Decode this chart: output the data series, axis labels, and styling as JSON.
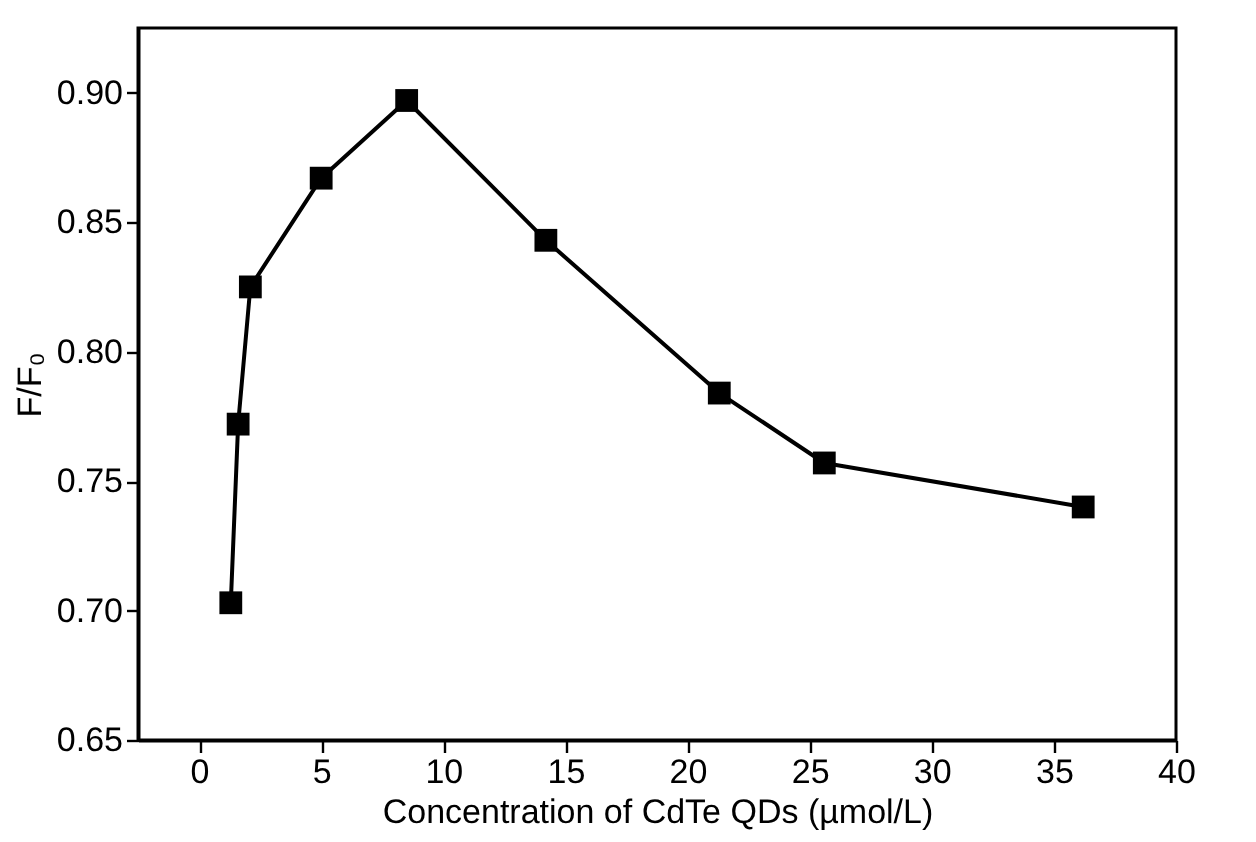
{
  "chart_data": {
    "type": "line",
    "xlabel": "Concentration of CdTe QDs (µmol/L)",
    "ylabel": "F/F₀",
    "x": [
      1.3,
      1.6,
      2.1,
      5.0,
      8.5,
      14.2,
      21.3,
      25.6,
      36.2
    ],
    "series": [
      {
        "color": "#000000",
        "values": [
          0.703,
          0.772,
          0.825,
          0.867,
          0.897,
          0.843,
          0.784,
          0.757,
          0.74
        ]
      }
    ],
    "xlim": [
      -2.5,
      40
    ],
    "ylim": [
      0.65,
      0.925
    ],
    "xticks": [
      0,
      5,
      10,
      15,
      20,
      25,
      30,
      35,
      40
    ],
    "yticks": [
      {
        "value": 0.65,
        "label": "0.65"
      },
      {
        "value": 0.7,
        "label": "0.70"
      },
      {
        "value": 0.75,
        "label": "0.75"
      },
      {
        "value": 0.8,
        "label": "0.80"
      },
      {
        "value": 0.85,
        "label": "0.85"
      },
      {
        "value": 0.9,
        "label": "0.90"
      }
    ],
    "grid": false,
    "marker": "square",
    "line_style": "solid"
  }
}
